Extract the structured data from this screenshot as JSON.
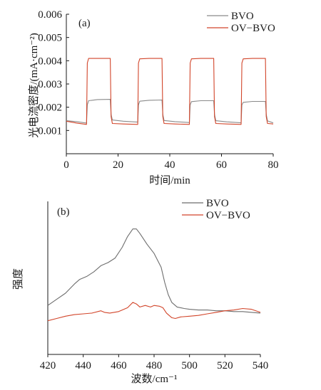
{
  "chart_data": [
    {
      "type": "line",
      "panel_label": "(a)",
      "xlabel": "时间/min",
      "ylabel": "光电流密度/(mA·cm⁻²)",
      "xlim": [
        0,
        80
      ],
      "ylim": [
        0,
        0.006
      ],
      "x_ticks": [
        "0",
        "20",
        "40",
        "60",
        "80"
      ],
      "y_ticks": [
        "0.001",
        "0.002",
        "0.003",
        "0.004",
        "0.005",
        "0.006"
      ],
      "grid": false,
      "legend_position": "top-right",
      "series": [
        {
          "name": "BVO",
          "color": "#8a8a8a",
          "x": [
            0,
            4,
            7.8,
            8.1,
            8.6,
            12,
            17,
            17.3,
            17.8,
            22,
            27.6,
            27.9,
            28.4,
            32,
            37,
            37.3,
            37.8,
            42,
            47.6,
            47.9,
            48.4,
            52,
            57,
            57.3,
            57.8,
            62,
            67.6,
            67.9,
            68.4,
            72,
            77,
            77.3,
            77.8,
            80
          ],
          "y": [
            0.00142,
            0.00138,
            0.00132,
            0.0021,
            0.00228,
            0.00233,
            0.00234,
            0.0017,
            0.00145,
            0.0014,
            0.00136,
            0.0021,
            0.00226,
            0.0023,
            0.00231,
            0.0017,
            0.00143,
            0.00138,
            0.00134,
            0.0021,
            0.00224,
            0.00228,
            0.00228,
            0.0017,
            0.00142,
            0.00137,
            0.00133,
            0.0021,
            0.00221,
            0.00225,
            0.00225,
            0.0017,
            0.00141,
            0.00133
          ]
        },
        {
          "name": "OV−BVO",
          "color": "#d2452a",
          "x": [
            0,
            4,
            7.8,
            8.1,
            8.6,
            12,
            17,
            17.3,
            17.8,
            22,
            27.6,
            27.9,
            28.4,
            32,
            37,
            37.3,
            37.8,
            42,
            47.6,
            47.9,
            48.4,
            52,
            57,
            57.3,
            57.8,
            62,
            67.6,
            67.9,
            68.4,
            72,
            77,
            77.3,
            77.8,
            80
          ],
          "y": [
            0.0014,
            0.00132,
            0.00126,
            0.0039,
            0.0041,
            0.0041,
            0.0041,
            0.0016,
            0.0013,
            0.00128,
            0.00126,
            0.0039,
            0.00408,
            0.0041,
            0.0041,
            0.0016,
            0.0013,
            0.00128,
            0.00126,
            0.0039,
            0.00408,
            0.0041,
            0.0041,
            0.0016,
            0.0013,
            0.00128,
            0.00126,
            0.0039,
            0.00408,
            0.0041,
            0.0041,
            0.0016,
            0.0013,
            0.00128
          ]
        }
      ]
    },
    {
      "type": "line",
      "panel_label": "(b)",
      "xlabel": "波数/cm⁻¹",
      "ylabel": "强度",
      "xlim": [
        420,
        540
      ],
      "ylim": [
        0,
        100
      ],
      "x_ticks": [
        "420",
        "440",
        "460",
        "480",
        "500",
        "520",
        "540"
      ],
      "y_ticks": [],
      "grid": false,
      "legend_position": "top-right",
      "series": [
        {
          "name": "BVO",
          "color": "#6e6e6e",
          "x": [
            420,
            425,
            430,
            435,
            438,
            442,
            446,
            450,
            454,
            458,
            462,
            465,
            468,
            470,
            472,
            476,
            480,
            484,
            486,
            488,
            490,
            493,
            497,
            500,
            505,
            510,
            515,
            520,
            525,
            530,
            535,
            540
          ],
          "y": [
            32,
            36,
            40,
            46,
            49,
            51,
            54,
            58,
            60,
            63,
            70,
            77,
            82,
            82,
            79,
            72,
            66,
            57,
            47,
            39,
            34,
            31,
            30,
            29.5,
            29,
            29,
            28.5,
            28.5,
            28,
            28,
            27.5,
            27
          ]
        },
        {
          "name": "OV−BVO",
          "color": "#d2452a",
          "x": [
            420,
            425,
            430,
            435,
            440,
            445,
            450,
            452,
            455,
            460,
            465,
            468,
            470,
            472,
            475,
            478,
            480,
            483,
            485,
            487,
            490,
            492,
            495,
            500,
            505,
            510,
            515,
            520,
            525,
            530,
            535,
            540
          ],
          "y": [
            22,
            23.5,
            25,
            26,
            26.5,
            27,
            28.5,
            27.5,
            27,
            28,
            30.5,
            34,
            33,
            31,
            32,
            31,
            32,
            31.5,
            30.5,
            27,
            24,
            23.5,
            24.5,
            25,
            25.5,
            26.5,
            27.5,
            28.5,
            29,
            30,
            29.5,
            27.5
          ]
        }
      ]
    }
  ]
}
